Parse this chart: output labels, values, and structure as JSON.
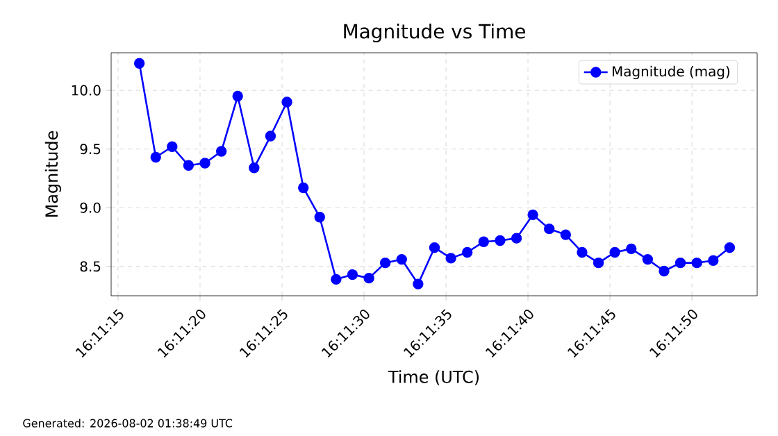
{
  "chart_data": {
    "type": "line",
    "title": "Magnitude vs Time",
    "xlabel": "Time (UTC)",
    "ylabel": "Magnitude",
    "annotations": [
      "Generated: 2026-08-02 01:38:49 UTC"
    ],
    "series": [
      {
        "name": "Magnitude (mag)",
        "color": "#0000ff",
        "x": [
          16.187861,
          16.188139,
          16.188416,
          16.188694,
          16.188972,
          16.18925,
          16.189527,
          16.189805,
          16.190083,
          16.190361,
          16.190639,
          16.190916,
          16.191194,
          16.191472,
          16.19175,
          16.192027,
          16.192305,
          16.192583,
          16.192861,
          16.193139,
          16.193416,
          16.193694,
          16.193972,
          16.19425,
          16.194527,
          16.194805,
          16.195083,
          16.195361,
          16.195639,
          16.195916,
          16.196194,
          16.196472,
          16.19675,
          16.197027,
          16.197305,
          16.197583,
          16.197861
        ],
        "values": [
          10.23,
          9.43,
          9.52,
          9.36,
          9.38,
          9.48,
          9.95,
          9.34,
          9.61,
          9.9,
          9.17,
          8.92,
          8.39,
          8.43,
          8.4,
          8.53,
          8.56,
          8.35,
          8.66,
          8.57,
          8.62,
          8.71,
          8.72,
          8.74,
          8.94,
          8.82,
          8.77,
          8.62,
          8.53,
          8.62,
          8.65,
          8.56,
          8.46,
          8.53,
          8.53,
          8.55,
          8.66
        ]
      }
    ],
    "xlim": [
      16.187383,
      16.198327
    ],
    "xticks": [
      {
        "value": 16.1875,
        "label": "16:11:15"
      },
      {
        "value": 16.188889,
        "label": "16:11:20"
      },
      {
        "value": 16.190278,
        "label": "16:11:25"
      },
      {
        "value": 16.191667,
        "label": "16:11:30"
      },
      {
        "value": 16.193056,
        "label": "16:11:35"
      },
      {
        "value": 16.194444,
        "label": "16:11:40"
      },
      {
        "value": 16.195833,
        "label": "16:11:45"
      },
      {
        "value": 16.197222,
        "label": "16:11:50"
      }
    ],
    "ylim": [
      8.25,
      10.32
    ],
    "yticks": [
      {
        "value": 8.5,
        "label": "8.5"
      },
      {
        "value": 9.0,
        "label": "9.0"
      },
      {
        "value": 9.5,
        "label": "9.5"
      },
      {
        "value": 10.0,
        "label": "10.0"
      }
    ],
    "grid": true,
    "legend": "top right",
    "marker": "circle",
    "line_style": "solid"
  }
}
